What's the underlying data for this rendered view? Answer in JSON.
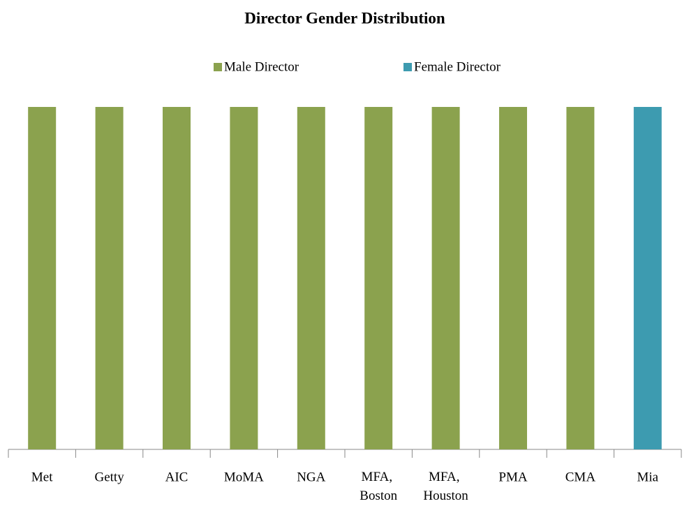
{
  "chart_data": {
    "type": "bar",
    "stacked": true,
    "title": "Director Gender Distribution",
    "categories": [
      "Met",
      "Getty",
      "AIC",
      "MoMA",
      "NGA",
      "MFA, Boston",
      "MFA, Houston",
      "PMA",
      "CMA",
      "Mia"
    ],
    "series": [
      {
        "name": "Male Director",
        "color": "#8ba24e",
        "values": [
          1,
          1,
          1,
          1,
          1,
          1,
          1,
          1,
          1,
          0
        ]
      },
      {
        "name": "Female Director",
        "color": "#3d9bb0",
        "values": [
          0,
          0,
          0,
          0,
          0,
          0,
          0,
          0,
          0,
          1
        ]
      }
    ],
    "ylim": [
      0,
      1
    ],
    "legend": "top"
  }
}
